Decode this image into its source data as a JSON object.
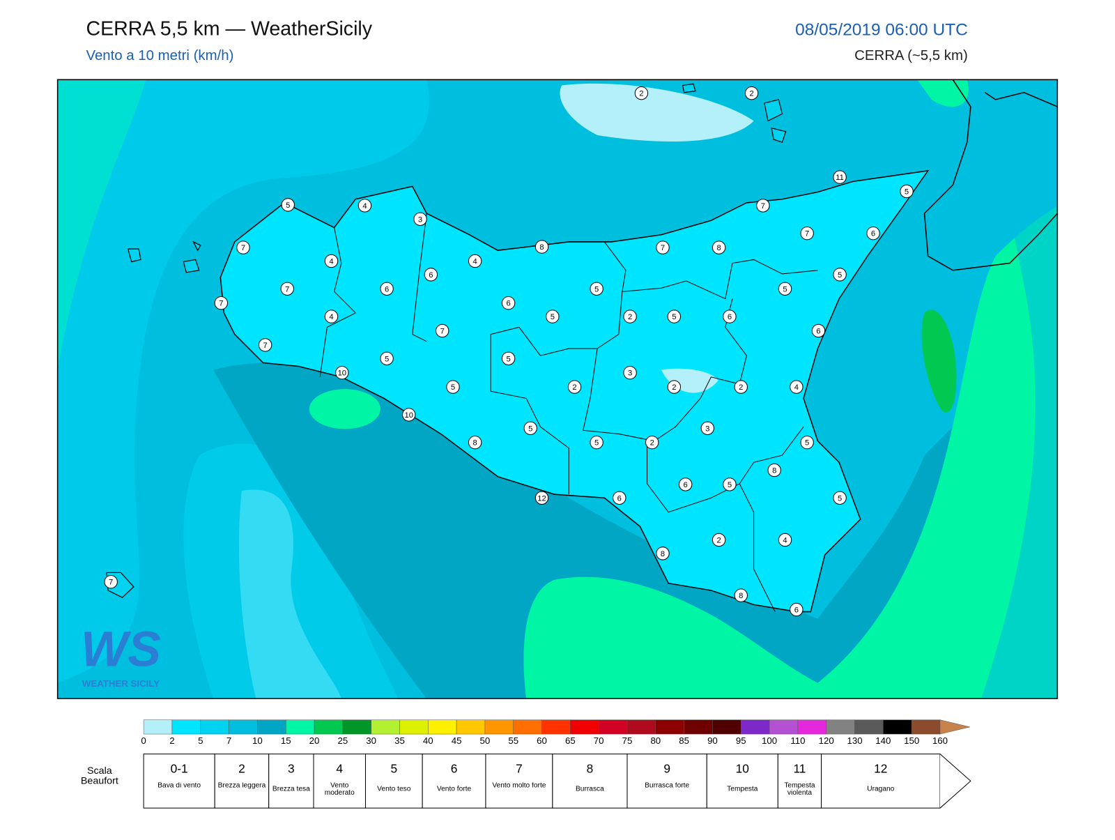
{
  "header": {
    "title": "CERRA 5,5 km — WeatherSicily",
    "subtitle": "Vento a 10 metri (km/h)",
    "datetime": "08/05/2019 06:00 UTC",
    "model": "CERRA (~5,5 km)"
  },
  "stations": [
    2,
    2,
    11,
    5,
    5,
    4,
    3,
    7,
    7,
    6,
    7,
    8,
    7,
    8,
    4,
    4,
    6,
    5,
    7,
    6,
    5,
    5,
    7,
    6,
    4,
    5,
    2,
    5,
    6,
    7,
    6,
    7,
    5,
    5,
    10,
    3,
    5,
    2,
    2,
    2,
    4,
    10,
    5,
    3,
    8,
    5,
    2,
    5,
    8,
    6,
    5,
    12,
    6,
    5,
    2,
    4,
    8,
    7,
    8,
    6
  ],
  "logo": {
    "mark": "WS",
    "name": "WEATHER SICILY"
  },
  "colorbar": {
    "ticks": [
      "0",
      "2",
      "5",
      "7",
      "10",
      "15",
      "20",
      "25",
      "30",
      "35",
      "40",
      "45",
      "50",
      "55",
      "60",
      "65",
      "70",
      "75",
      "80",
      "85",
      "90",
      "95",
      "100",
      "110",
      "120",
      "130",
      "140",
      "150",
      "160"
    ],
    "colors": [
      "#b3f0fa",
      "#00e5ff",
      "#00d2f0",
      "#00bede",
      "#00a6c4",
      "#00f5a5",
      "#00c850",
      "#009628",
      "#b4f032",
      "#dcf000",
      "#fff000",
      "#ffc800",
      "#ff9600",
      "#ff6e00",
      "#ff3200",
      "#f00000",
      "#d20023",
      "#af0a1e",
      "#8c0000",
      "#6e0000",
      "#500000",
      "#7d28c8",
      "#b450d2",
      "#e628dc",
      "#828282",
      "#5a5a5a",
      "#000000",
      "#8c4b2d",
      "#c8824b"
    ]
  },
  "beaufort": {
    "title": "Scala Beaufort",
    "levels": [
      {
        "number": "0-1",
        "label": "Bava di vento"
      },
      {
        "number": "2",
        "label": "Brezza leggera"
      },
      {
        "number": "3",
        "label": "Brezza tesa"
      },
      {
        "number": "4",
        "label": "Vento moderato"
      },
      {
        "number": "5",
        "label": "Vento teso"
      },
      {
        "number": "6",
        "label": "Vento forte"
      },
      {
        "number": "7",
        "label": "Vento molto forte"
      },
      {
        "number": "8",
        "label": "Burrasca"
      },
      {
        "number": "9",
        "label": "Burrasca forte"
      },
      {
        "number": "10",
        "label": "Tempesta"
      },
      {
        "number": "11",
        "label": "Tempesta violenta"
      },
      {
        "number": "12",
        "label": "Uragano"
      }
    ]
  }
}
